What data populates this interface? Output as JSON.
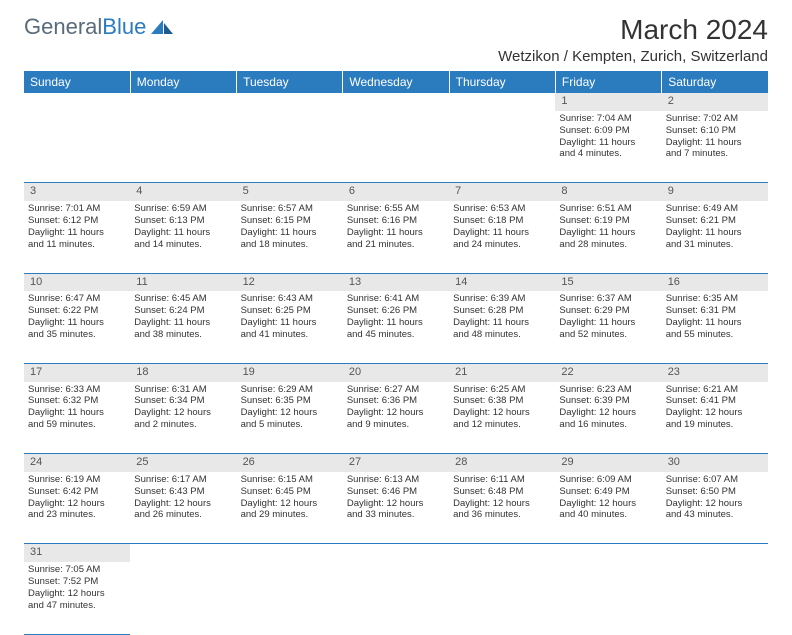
{
  "header": {
    "logo_text_1": "General",
    "logo_text_2": "Blue",
    "month_title": "March 2024",
    "location": "Wetzikon / Kempten, Zurich, Switzerland"
  },
  "colors": {
    "header_bg": "#2b7bbf",
    "header_fg": "#ffffff",
    "daynum_bg": "#e8e8e8",
    "border": "#2b7bbf",
    "logo_gray": "#5a6b7a",
    "logo_blue": "#2b7bbf"
  },
  "weekdays": [
    "Sunday",
    "Monday",
    "Tuesday",
    "Wednesday",
    "Thursday",
    "Friday",
    "Saturday"
  ],
  "weeks": [
    {
      "nums": [
        "",
        "",
        "",
        "",
        "",
        "1",
        "2"
      ],
      "cells": [
        null,
        null,
        null,
        null,
        null,
        {
          "sunrise": "Sunrise: 7:04 AM",
          "sunset": "Sunset: 6:09 PM",
          "day1": "Daylight: 11 hours",
          "day2": "and 4 minutes."
        },
        {
          "sunrise": "Sunrise: 7:02 AM",
          "sunset": "Sunset: 6:10 PM",
          "day1": "Daylight: 11 hours",
          "day2": "and 7 minutes."
        }
      ]
    },
    {
      "nums": [
        "3",
        "4",
        "5",
        "6",
        "7",
        "8",
        "9"
      ],
      "cells": [
        {
          "sunrise": "Sunrise: 7:01 AM",
          "sunset": "Sunset: 6:12 PM",
          "day1": "Daylight: 11 hours",
          "day2": "and 11 minutes."
        },
        {
          "sunrise": "Sunrise: 6:59 AM",
          "sunset": "Sunset: 6:13 PM",
          "day1": "Daylight: 11 hours",
          "day2": "and 14 minutes."
        },
        {
          "sunrise": "Sunrise: 6:57 AM",
          "sunset": "Sunset: 6:15 PM",
          "day1": "Daylight: 11 hours",
          "day2": "and 18 minutes."
        },
        {
          "sunrise": "Sunrise: 6:55 AM",
          "sunset": "Sunset: 6:16 PM",
          "day1": "Daylight: 11 hours",
          "day2": "and 21 minutes."
        },
        {
          "sunrise": "Sunrise: 6:53 AM",
          "sunset": "Sunset: 6:18 PM",
          "day1": "Daylight: 11 hours",
          "day2": "and 24 minutes."
        },
        {
          "sunrise": "Sunrise: 6:51 AM",
          "sunset": "Sunset: 6:19 PM",
          "day1": "Daylight: 11 hours",
          "day2": "and 28 minutes."
        },
        {
          "sunrise": "Sunrise: 6:49 AM",
          "sunset": "Sunset: 6:21 PM",
          "day1": "Daylight: 11 hours",
          "day2": "and 31 minutes."
        }
      ]
    },
    {
      "nums": [
        "10",
        "11",
        "12",
        "13",
        "14",
        "15",
        "16"
      ],
      "cells": [
        {
          "sunrise": "Sunrise: 6:47 AM",
          "sunset": "Sunset: 6:22 PM",
          "day1": "Daylight: 11 hours",
          "day2": "and 35 minutes."
        },
        {
          "sunrise": "Sunrise: 6:45 AM",
          "sunset": "Sunset: 6:24 PM",
          "day1": "Daylight: 11 hours",
          "day2": "and 38 minutes."
        },
        {
          "sunrise": "Sunrise: 6:43 AM",
          "sunset": "Sunset: 6:25 PM",
          "day1": "Daylight: 11 hours",
          "day2": "and 41 minutes."
        },
        {
          "sunrise": "Sunrise: 6:41 AM",
          "sunset": "Sunset: 6:26 PM",
          "day1": "Daylight: 11 hours",
          "day2": "and 45 minutes."
        },
        {
          "sunrise": "Sunrise: 6:39 AM",
          "sunset": "Sunset: 6:28 PM",
          "day1": "Daylight: 11 hours",
          "day2": "and 48 minutes."
        },
        {
          "sunrise": "Sunrise: 6:37 AM",
          "sunset": "Sunset: 6:29 PM",
          "day1": "Daylight: 11 hours",
          "day2": "and 52 minutes."
        },
        {
          "sunrise": "Sunrise: 6:35 AM",
          "sunset": "Sunset: 6:31 PM",
          "day1": "Daylight: 11 hours",
          "day2": "and 55 minutes."
        }
      ]
    },
    {
      "nums": [
        "17",
        "18",
        "19",
        "20",
        "21",
        "22",
        "23"
      ],
      "cells": [
        {
          "sunrise": "Sunrise: 6:33 AM",
          "sunset": "Sunset: 6:32 PM",
          "day1": "Daylight: 11 hours",
          "day2": "and 59 minutes."
        },
        {
          "sunrise": "Sunrise: 6:31 AM",
          "sunset": "Sunset: 6:34 PM",
          "day1": "Daylight: 12 hours",
          "day2": "and 2 minutes."
        },
        {
          "sunrise": "Sunrise: 6:29 AM",
          "sunset": "Sunset: 6:35 PM",
          "day1": "Daylight: 12 hours",
          "day2": "and 5 minutes."
        },
        {
          "sunrise": "Sunrise: 6:27 AM",
          "sunset": "Sunset: 6:36 PM",
          "day1": "Daylight: 12 hours",
          "day2": "and 9 minutes."
        },
        {
          "sunrise": "Sunrise: 6:25 AM",
          "sunset": "Sunset: 6:38 PM",
          "day1": "Daylight: 12 hours",
          "day2": "and 12 minutes."
        },
        {
          "sunrise": "Sunrise: 6:23 AM",
          "sunset": "Sunset: 6:39 PM",
          "day1": "Daylight: 12 hours",
          "day2": "and 16 minutes."
        },
        {
          "sunrise": "Sunrise: 6:21 AM",
          "sunset": "Sunset: 6:41 PM",
          "day1": "Daylight: 12 hours",
          "day2": "and 19 minutes."
        }
      ]
    },
    {
      "nums": [
        "24",
        "25",
        "26",
        "27",
        "28",
        "29",
        "30"
      ],
      "cells": [
        {
          "sunrise": "Sunrise: 6:19 AM",
          "sunset": "Sunset: 6:42 PM",
          "day1": "Daylight: 12 hours",
          "day2": "and 23 minutes."
        },
        {
          "sunrise": "Sunrise: 6:17 AM",
          "sunset": "Sunset: 6:43 PM",
          "day1": "Daylight: 12 hours",
          "day2": "and 26 minutes."
        },
        {
          "sunrise": "Sunrise: 6:15 AM",
          "sunset": "Sunset: 6:45 PM",
          "day1": "Daylight: 12 hours",
          "day2": "and 29 minutes."
        },
        {
          "sunrise": "Sunrise: 6:13 AM",
          "sunset": "Sunset: 6:46 PM",
          "day1": "Daylight: 12 hours",
          "day2": "and 33 minutes."
        },
        {
          "sunrise": "Sunrise: 6:11 AM",
          "sunset": "Sunset: 6:48 PM",
          "day1": "Daylight: 12 hours",
          "day2": "and 36 minutes."
        },
        {
          "sunrise": "Sunrise: 6:09 AM",
          "sunset": "Sunset: 6:49 PM",
          "day1": "Daylight: 12 hours",
          "day2": "and 40 minutes."
        },
        {
          "sunrise": "Sunrise: 6:07 AM",
          "sunset": "Sunset: 6:50 PM",
          "day1": "Daylight: 12 hours",
          "day2": "and 43 minutes."
        }
      ]
    },
    {
      "nums": [
        "31",
        "",
        "",
        "",
        "",
        "",
        ""
      ],
      "cells": [
        {
          "sunrise": "Sunrise: 7:05 AM",
          "sunset": "Sunset: 7:52 PM",
          "day1": "Daylight: 12 hours",
          "day2": "and 47 minutes."
        },
        null,
        null,
        null,
        null,
        null,
        null
      ]
    }
  ]
}
